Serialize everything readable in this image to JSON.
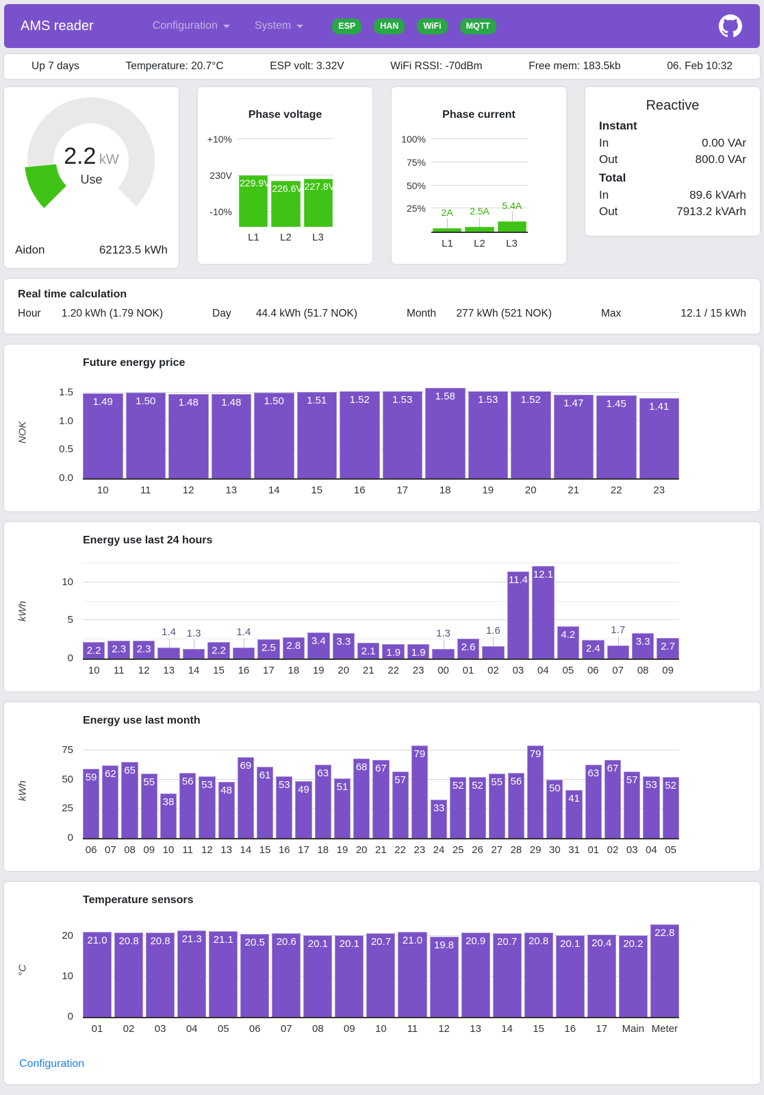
{
  "header": {
    "brand": "AMS reader",
    "nav": [
      {
        "label": "Configuration"
      },
      {
        "label": "System"
      }
    ],
    "badges": [
      "ESP",
      "HAN",
      "WiFi",
      "MQTT"
    ]
  },
  "status_bar": {
    "items": [
      "Up 7 days",
      "Temperature: 20.7°C",
      "ESP volt: 3.32V",
      "WiFi RSSI: -70dBm",
      "Free mem: 183.5kb",
      "06. Feb 10:32"
    ]
  },
  "gauge": {
    "value": "2.2",
    "unit": "kW",
    "label": "Use",
    "numeric_value": 2.2,
    "max": 15,
    "meter": "Aidon",
    "total": "62123.5 kWh"
  },
  "reactive": {
    "title": "Reactive",
    "sections": [
      {
        "title": "Instant",
        "rows": [
          {
            "label": "In",
            "value": "0.00 VAr"
          },
          {
            "label": "Out",
            "value": "800.0 VAr"
          }
        ]
      },
      {
        "title": "Total",
        "rows": [
          {
            "label": "In",
            "value": "89.6 kVArh"
          },
          {
            "label": "Out",
            "value": "7913.2 kVArh"
          }
        ]
      }
    ]
  },
  "realtime": {
    "title": "Real time calculation",
    "pairs": [
      {
        "label": "Hour",
        "value": "1.20 kWh (1.79 NOK)"
      },
      {
        "label": "Day",
        "value": "44.4 kWh (51.7 NOK)"
      },
      {
        "label": "Month",
        "value": "277 kWh (521 NOK)"
      },
      {
        "label": "Max",
        "value": "12.1 / 15 kWh"
      }
    ]
  },
  "footer": {
    "link": "Configuration"
  },
  "colors": {
    "header_purple": "#7951cd",
    "bar_purple": "#7a51c6",
    "chart_green": "#3fc316",
    "badge_green": "#28a745",
    "link_blue": "#1b7ef2"
  },
  "chart_data": [
    {
      "id": "phase_voltage",
      "type": "bar",
      "title": "Phase voltage",
      "categories": [
        "L1",
        "L2",
        "L3"
      ],
      "values": [
        229.9,
        226.6,
        227.8
      ],
      "value_labels": [
        "229.9V",
        "226.6V",
        "227.8V"
      ],
      "ylim": [
        197.5,
        253
      ],
      "gridlines": [
        {
          "v": 253,
          "label": "+10%"
        },
        {
          "v": 230,
          "label": "230V"
        },
        {
          "v": 207,
          "label": "-10%"
        }
      ]
    },
    {
      "id": "phase_current",
      "type": "bar",
      "title": "Phase current",
      "categories": [
        "L1",
        "L2",
        "L3"
      ],
      "values": [
        2,
        2.5,
        5.4
      ],
      "value_labels": [
        "2A",
        "2.5A",
        "5.4A"
      ],
      "ylim": [
        0,
        50
      ],
      "gridlines": [
        {
          "v": 100,
          "label": "100%"
        },
        {
          "v": 75,
          "label": "75%"
        },
        {
          "v": 50,
          "label": "50%"
        },
        {
          "v": 25,
          "label": "25%"
        }
      ]
    },
    {
      "id": "price",
      "type": "bar",
      "title": "Future energy price",
      "ylabel": "NOK",
      "categories": [
        "10",
        "11",
        "12",
        "13",
        "14",
        "15",
        "16",
        "17",
        "18",
        "19",
        "20",
        "21",
        "22",
        "23"
      ],
      "values": [
        1.49,
        1.5,
        1.48,
        1.48,
        1.5,
        1.51,
        1.52,
        1.53,
        1.58,
        1.53,
        1.52,
        1.47,
        1.45,
        1.41
      ],
      "value_labels": [
        "1.49",
        "1.50",
        "1.48",
        "1.48",
        "1.50",
        "1.51",
        "1.52",
        "1.53",
        "1.58",
        "1.53",
        "1.52",
        "1.47",
        "1.45",
        "1.41"
      ],
      "ylim": [
        0,
        1.62
      ],
      "grid_step": 0.5,
      "yticks": [
        {
          "v": 1.5,
          "label": "1.5"
        },
        {
          "v": 1.0,
          "label": "1.0"
        },
        {
          "v": 0.5,
          "label": "0.5"
        },
        {
          "v": 0,
          "label": "0.0"
        }
      ]
    },
    {
      "id": "last24",
      "type": "bar",
      "title": "Energy use last 24 hours",
      "ylabel": "kWh",
      "categories": [
        "10",
        "11",
        "12",
        "13",
        "14",
        "15",
        "16",
        "17",
        "18",
        "19",
        "20",
        "21",
        "22",
        "23",
        "00",
        "01",
        "02",
        "03",
        "04",
        "05",
        "06",
        "07",
        "08",
        "09"
      ],
      "values": [
        2.2,
        2.3,
        2.3,
        1.4,
        1.3,
        2.2,
        1.4,
        2.5,
        2.8,
        3.4,
        3.3,
        2.1,
        1.9,
        1.9,
        1.3,
        2.6,
        1.6,
        11.4,
        12.1,
        4.2,
        2.4,
        1.7,
        3.3,
        2.7
      ],
      "value_labels": [
        "2.2",
        "2.3",
        "2.3",
        "1.4",
        "1.3",
        "2.2",
        "1.4",
        "2.5",
        "2.8",
        "3.4",
        "3.3",
        "2.1",
        "1.9",
        "1.9",
        "1.3",
        "2.6",
        "1.6",
        "11.4",
        "12.1",
        "4.2",
        "2.4",
        "1.7",
        "3.3",
        "2.7"
      ],
      "ylim": [
        0,
        12.5
      ],
      "grid_step": 2.5,
      "yticks": [
        {
          "v": 10,
          "label": "10"
        },
        {
          "v": 5,
          "label": "5"
        },
        {
          "v": 0,
          "label": "0"
        }
      ]
    },
    {
      "id": "month",
      "type": "bar",
      "title": "Energy use last month",
      "ylabel": "kWh",
      "categories": [
        "06",
        "07",
        "08",
        "09",
        "10",
        "11",
        "12",
        "13",
        "14",
        "15",
        "16",
        "17",
        "18",
        "19",
        "20",
        "21",
        "22",
        "23",
        "24",
        "25",
        "26",
        "27",
        "28",
        "29",
        "30",
        "31",
        "01",
        "02",
        "03",
        "04",
        "05"
      ],
      "values": [
        59,
        62,
        65,
        55,
        38,
        56,
        53,
        48,
        69,
        61,
        53,
        49,
        63,
        51,
        68,
        67,
        57,
        79,
        33,
        52,
        52,
        55,
        56,
        79,
        50,
        41,
        63,
        67,
        57,
        53,
        52
      ],
      "value_labels": [
        "59",
        "62",
        "65",
        "55",
        "38",
        "56",
        "53",
        "48",
        "69",
        "61",
        "53",
        "49",
        "63",
        "51",
        "68",
        "67",
        "57",
        "79",
        "33",
        "52",
        "52",
        "55",
        "56",
        "79",
        "50",
        "41",
        "63",
        "67",
        "57",
        "53",
        "52"
      ],
      "ylim": [
        0,
        81
      ],
      "grid_step": 25,
      "yticks": [
        {
          "v": 75,
          "label": "75"
        },
        {
          "v": 50,
          "label": "50"
        },
        {
          "v": 25,
          "label": "25"
        },
        {
          "v": 0,
          "label": "0"
        }
      ]
    },
    {
      "id": "temperature",
      "type": "bar",
      "title": "Temperature sensors",
      "ylabel": "°C",
      "categories": [
        "01",
        "02",
        "03",
        "04",
        "05",
        "06",
        "07",
        "08",
        "09",
        "10",
        "11",
        "12",
        "13",
        "14",
        "15",
        "16",
        "17",
        "Main",
        "Meter"
      ],
      "values": [
        21.0,
        20.8,
        20.8,
        21.3,
        21.1,
        20.5,
        20.6,
        20.1,
        20.1,
        20.7,
        21.0,
        19.8,
        20.9,
        20.7,
        20.8,
        20.1,
        20.4,
        20.2,
        22.8
      ],
      "value_labels": [
        "21.0",
        "20.8",
        "20.8",
        "21.3",
        "21.1",
        "20.5",
        "20.6",
        "20.1",
        "20.1",
        "20.7",
        "21.0",
        "19.8",
        "20.9",
        "20.7",
        "20.8",
        "20.1",
        "20.4",
        "20.2",
        "22.8"
      ],
      "ylim": [
        0,
        23.2
      ],
      "grid_step": 5,
      "yticks": [
        {
          "v": 20,
          "label": "20"
        },
        {
          "v": 10,
          "label": "10"
        },
        {
          "v": 0,
          "label": "0"
        }
      ]
    }
  ]
}
